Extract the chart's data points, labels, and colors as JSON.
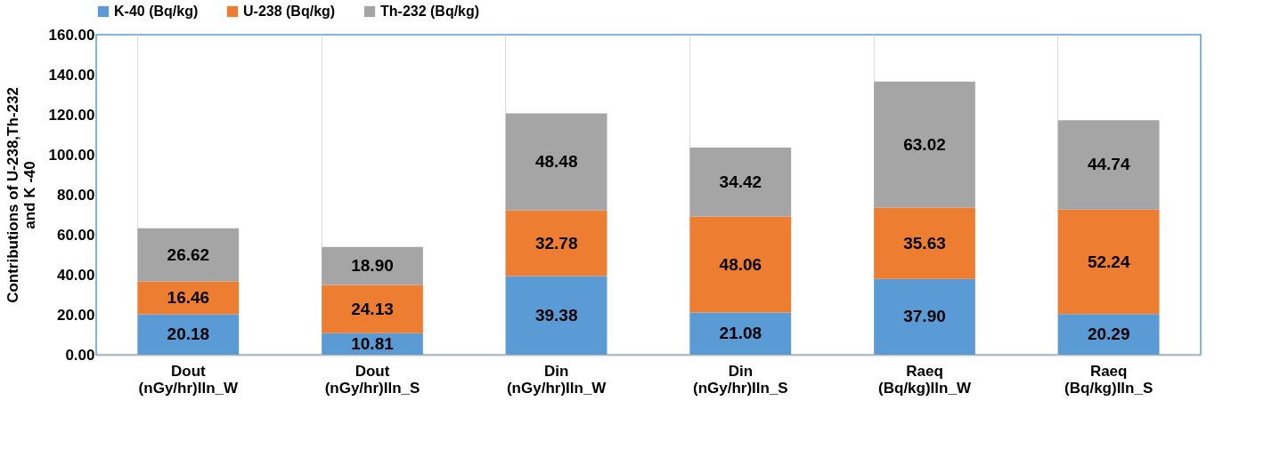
{
  "chart_data": {
    "type": "bar",
    "stacked": true,
    "ylabel": "Contributions of U-238,Th-232 and K -40",
    "categories": [
      "Dout (nGy/hr)Iln_W",
      "Dout (nGy/hr)Iln_S",
      "Din (nGy/hr)Iln_W",
      "Din (nGy/hr)Iln_S",
      "Raeq (Bq/kg)Iln_W",
      "Raeq (Bq/kg)Iln_S"
    ],
    "series": [
      {
        "name": "K-40 (Bq/kg)",
        "color": "#5b9bd5",
        "values": [
          20.18,
          10.81,
          39.38,
          21.08,
          37.9,
          20.29
        ],
        "value_labels": [
          "20.18",
          "10.81",
          "39.38",
          "21.08",
          "37.90",
          "20.29"
        ]
      },
      {
        "name": "U-238 (Bq/kg)",
        "color": "#ed7d31",
        "values": [
          16.46,
          24.13,
          32.78,
          48.06,
          35.63,
          52.24
        ],
        "value_labels": [
          "16.46",
          "24.13",
          "32.78",
          "48.06",
          "35.63",
          "52.24"
        ]
      },
      {
        "name": "Th-232 (Bq/kg)",
        "color": "#a5a5a5",
        "values": [
          26.62,
          18.9,
          48.48,
          34.42,
          63.02,
          44.74
        ],
        "value_labels": [
          "26.62",
          "18.90",
          "48.48",
          "34.42",
          "63.02",
          "44.74"
        ]
      }
    ],
    "ylim": [
      0,
      160
    ],
    "yticks": [
      {
        "value": 0,
        "label": "0.00"
      },
      {
        "value": 20,
        "label": "20.00"
      },
      {
        "value": 40,
        "label": "40.00"
      },
      {
        "value": 60,
        "label": "60.00"
      },
      {
        "value": 80,
        "label": "80.00"
      },
      {
        "value": 100,
        "label": "100.00"
      },
      {
        "value": 120,
        "label": "120.00"
      },
      {
        "value": 140,
        "label": "140.00"
      },
      {
        "value": 160,
        "label": "160.00"
      }
    ],
    "grid": "x",
    "legend": "top"
  }
}
